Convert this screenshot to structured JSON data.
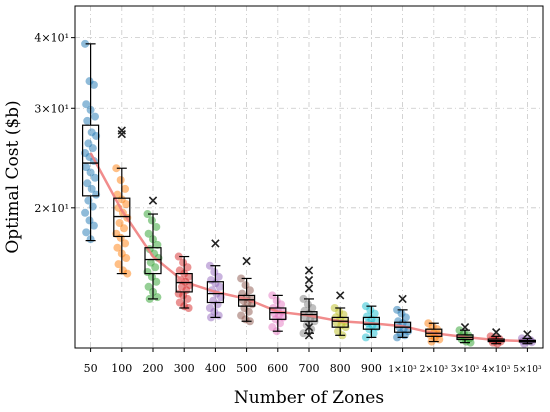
{
  "chart_data": {
    "type": "box",
    "xlabel": "Number of Zones",
    "ylabel": "Optimal Cost ($b)",
    "y_scale": "log",
    "ylim": [
      11.3,
      45.5
    ],
    "yticks": [
      {
        "value": 20,
        "label": "2×10¹"
      },
      {
        "value": 30,
        "label": "3×10¹"
      },
      {
        "value": 40,
        "label": "4×10¹"
      }
    ],
    "grid": true,
    "categories": [
      "50",
      "100",
      "200",
      "300",
      "400",
      "500",
      "600",
      "700",
      "800",
      "900",
      "1×10³",
      "2×10³",
      "3×10³",
      "4×10³",
      "5×10³"
    ],
    "colors": [
      "#1f77b4",
      "#ff7f0e",
      "#2ca02c",
      "#d62728",
      "#9467bd",
      "#8c564b",
      "#e377c2",
      "#7f7f7f",
      "#bcbd22",
      "#17becf",
      "#1f77b4",
      "#ff7f0e",
      "#2ca02c",
      "#d62728",
      "#9467bd"
    ],
    "trend_line_color": "#f08080",
    "boxes": [
      {
        "q1": 21.0,
        "median": 24.0,
        "q3": 28.0,
        "lo": 17.5,
        "hi": 39.0,
        "mean": 25.0,
        "outliers": []
      },
      {
        "q1": 17.8,
        "median": 19.3,
        "q3": 20.8,
        "lo": 15.3,
        "hi": 23.5,
        "mean": 19.8,
        "outliers": [
          27.0,
          27.4
        ]
      },
      {
        "q1": 15.3,
        "median": 16.2,
        "q3": 17.0,
        "lo": 13.8,
        "hi": 19.5,
        "mean": 16.4,
        "outliers": [
          20.6
        ]
      },
      {
        "q1": 14.2,
        "median": 14.75,
        "q3": 15.3,
        "lo": 13.3,
        "hi": 16.4,
        "mean": 14.8,
        "outliers": []
      },
      {
        "q1": 13.6,
        "median": 14.1,
        "q3": 14.8,
        "lo": 12.8,
        "hi": 15.8,
        "mean": 14.2,
        "outliers": [
          17.3
        ]
      },
      {
        "q1": 13.4,
        "median": 13.75,
        "q3": 14.0,
        "lo": 12.6,
        "hi": 15.0,
        "mean": 13.8,
        "outliers": [
          16.1
        ]
      },
      {
        "q1": 12.7,
        "median": 13.05,
        "q3": 13.3,
        "lo": 12.1,
        "hi": 14.0,
        "mean": 13.1,
        "outliers": []
      },
      {
        "q1": 12.6,
        "median": 12.95,
        "q3": 13.1,
        "lo": 12.0,
        "hi": 13.8,
        "mean": 12.9,
        "outliers": [
          15.5,
          14.9,
          14.4,
          12.3,
          11.9
        ]
      },
      {
        "q1": 12.3,
        "median": 12.6,
        "q3": 12.8,
        "lo": 11.9,
        "hi": 13.3,
        "mean": 12.6,
        "outliers": [
          14.0
        ]
      },
      {
        "q1": 12.2,
        "median": 12.45,
        "q3": 12.8,
        "lo": 11.8,
        "hi": 13.4,
        "mean": 12.5,
        "outliers": []
      },
      {
        "q1": 12.05,
        "median": 12.3,
        "q3": 12.55,
        "lo": 11.8,
        "hi": 13.2,
        "mean": 12.35,
        "outliers": [
          13.8
        ]
      },
      {
        "q1": 11.85,
        "median": 12.0,
        "q3": 12.2,
        "lo": 11.6,
        "hi": 12.5,
        "mean": 12.0,
        "outliers": []
      },
      {
        "q1": 11.7,
        "median": 11.8,
        "q3": 11.92,
        "lo": 11.55,
        "hi": 12.15,
        "mean": 11.82,
        "outliers": [
          12.3
        ]
      },
      {
        "q1": 11.6,
        "median": 11.65,
        "q3": 11.72,
        "lo": 11.5,
        "hi": 11.85,
        "mean": 11.67,
        "outliers": [
          12.05
        ]
      },
      {
        "q1": 11.58,
        "median": 11.62,
        "q3": 11.66,
        "lo": 11.5,
        "hi": 11.75,
        "mean": 11.62,
        "outliers": [
          11.95
        ]
      }
    ],
    "points": [
      [
        39.0,
        33.5,
        33.0,
        30.5,
        29.8,
        29.0,
        28.5,
        27.2,
        26.8,
        26.0,
        25.5,
        25.0,
        24.6,
        24.2,
        23.6,
        23.1,
        22.6,
        22.1,
        21.6,
        21.1,
        20.6,
        20.1,
        19.6,
        19.0,
        18.6,
        18.1,
        17.6
      ],
      [
        23.5,
        22.4,
        21.6,
        21.1,
        20.7,
        20.3,
        20.0,
        19.6,
        19.2,
        18.8,
        18.4,
        18.0,
        17.7,
        17.3,
        17.0,
        16.6,
        16.3,
        15.9,
        15.5,
        15.3
      ],
      [
        19.5,
        19.0,
        18.5,
        18.0,
        17.6,
        17.2,
        16.9,
        16.6,
        16.3,
        16.0,
        15.7,
        15.4,
        15.1,
        14.8,
        14.5,
        14.2,
        13.9,
        13.8
      ],
      [
        16.4,
        16.0,
        15.7,
        15.5,
        15.3,
        15.1,
        14.9,
        14.8,
        14.6,
        14.5,
        14.3,
        14.1,
        14.0,
        13.8,
        13.6,
        13.4,
        13.3
      ],
      [
        15.8,
        15.4,
        15.1,
        14.9,
        14.7,
        14.5,
        14.3,
        14.1,
        13.9,
        13.7,
        13.5,
        13.3,
        13.1,
        12.9,
        12.8
      ],
      [
        15.0,
        14.6,
        14.3,
        14.1,
        13.9,
        13.8,
        13.7,
        13.6,
        13.5,
        13.3,
        13.1,
        12.9,
        12.7,
        12.6
      ],
      [
        14.0,
        13.7,
        13.5,
        13.3,
        13.2,
        13.1,
        13.0,
        12.9,
        12.8,
        12.7,
        12.5,
        12.3,
        12.1
      ],
      [
        13.8,
        13.5,
        13.3,
        13.15,
        13.0,
        12.9,
        12.8,
        12.7,
        12.6,
        12.4,
        12.2,
        12.0
      ],
      [
        13.3,
        13.1,
        12.95,
        12.8,
        12.7,
        12.6,
        12.5,
        12.4,
        12.3,
        12.1,
        11.9
      ],
      [
        13.4,
        13.2,
        13.0,
        12.85,
        12.7,
        12.6,
        12.5,
        12.4,
        12.3,
        12.2,
        12.0,
        11.8
      ],
      [
        13.2,
        13.0,
        12.8,
        12.6,
        12.5,
        12.4,
        12.3,
        12.2,
        12.1,
        12.0,
        11.9,
        11.8
      ],
      [
        12.5,
        12.35,
        12.2,
        12.1,
        12.0,
        11.95,
        11.9,
        11.8,
        11.7,
        11.6
      ],
      [
        12.15,
        12.0,
        11.9,
        11.85,
        11.8,
        11.75,
        11.7,
        11.6,
        11.55
      ],
      [
        11.85,
        11.78,
        11.72,
        11.68,
        11.64,
        11.6,
        11.55,
        11.5
      ],
      [
        11.75,
        11.7,
        11.66,
        11.63,
        11.6,
        11.57,
        11.5
      ]
    ]
  }
}
